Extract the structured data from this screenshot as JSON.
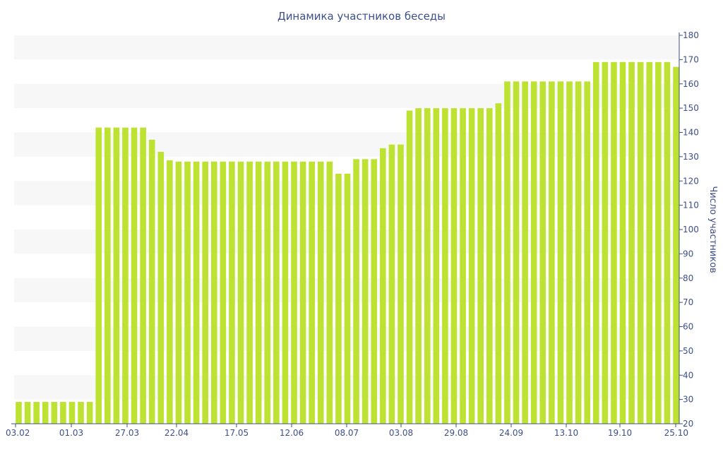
{
  "chart_data": {
    "type": "bar",
    "title": "Динамика участников беседы",
    "ylabel": "Число участников",
    "xlabel": "",
    "ylim": [
      20,
      180
    ],
    "yticks": [
      20,
      30,
      40,
      50,
      60,
      70,
      80,
      90,
      100,
      110,
      120,
      130,
      140,
      150,
      160,
      170,
      180
    ],
    "y_axis_side": "right",
    "x_tick_labels": [
      "03.02",
      "01.03",
      "27.03",
      "22.04",
      "17.05",
      "12.06",
      "08.07",
      "03.08",
      "29.08",
      "24.09",
      "13.10",
      "19.10",
      "25.10"
    ],
    "values": [
      29,
      29,
      29,
      29,
      29,
      29,
      29,
      29,
      29,
      142,
      142,
      142,
      142,
      142,
      142,
      137,
      132,
      128.5,
      128,
      128,
      128,
      128,
      128,
      128,
      128,
      128,
      128,
      128,
      128,
      128,
      128,
      128,
      128,
      128,
      128,
      128,
      123,
      123,
      129,
      129,
      129,
      133.5,
      135,
      135,
      149,
      150,
      150,
      150,
      150,
      150,
      150,
      150,
      150,
      150,
      152,
      161,
      161,
      161,
      161,
      161,
      161,
      161,
      161,
      161,
      161,
      169,
      169,
      169,
      169,
      169,
      169,
      169,
      169,
      169,
      167
    ],
    "grid": "horizontal bands",
    "bar_color": "#bde232",
    "band_color": "#f7f7f7",
    "axis_color": "#3d4f8a"
  }
}
